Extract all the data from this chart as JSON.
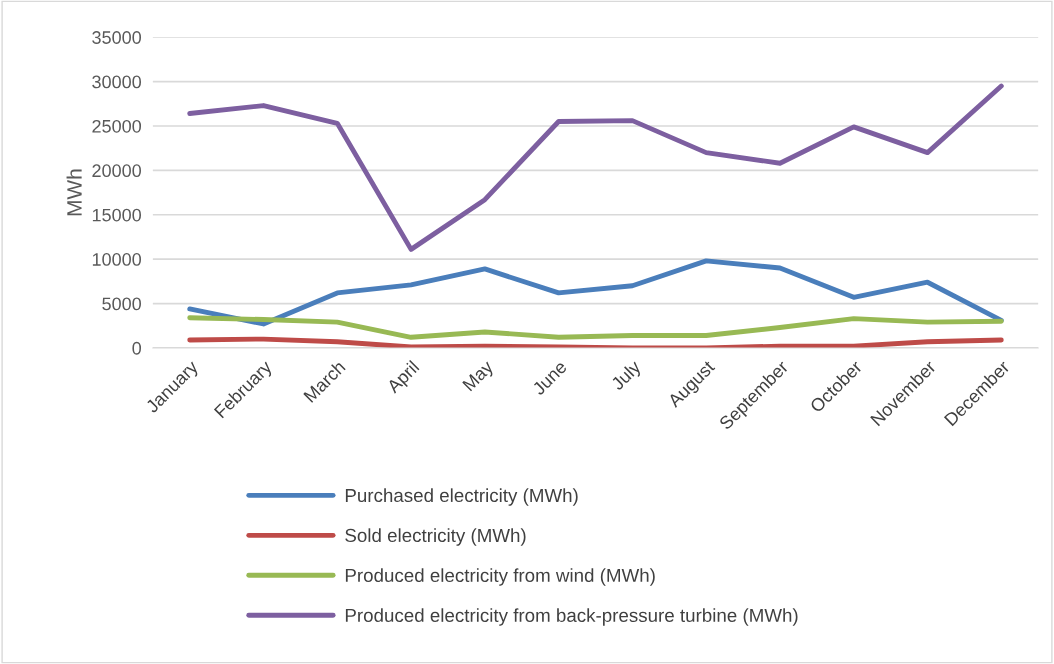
{
  "chart_data": {
    "type": "line",
    "ylabel": "MWh",
    "categories": [
      "January",
      "February",
      "March",
      "April",
      "May",
      "June",
      "July",
      "August",
      "September",
      "October",
      "November",
      "December"
    ],
    "series": [
      {
        "name": "Purchased electricity (MWh)",
        "color": "#4a7ebb",
        "values": [
          4400,
          2700,
          6200,
          7100,
          8900,
          6200,
          7000,
          9800,
          9000,
          5700,
          7400,
          3100
        ]
      },
      {
        "name": "Sold electricity (MWh)",
        "color": "#be4b48",
        "values": [
          900,
          1000,
          700,
          100,
          200,
          100,
          0,
          0,
          200,
          200,
          700,
          900
        ]
      },
      {
        "name": "Produced electricity from wind (MWh)",
        "color": "#98b954",
        "values": [
          3400,
          3200,
          2900,
          1200,
          1800,
          1200,
          1400,
          1400,
          2300,
          3300,
          2900,
          3000
        ]
      },
      {
        "name": "Produced electricity from back-pressure turbine (MWh)",
        "color": "#7d5fa0",
        "values": [
          26400,
          27300,
          25300,
          11100,
          16700,
          25500,
          25600,
          22000,
          20800,
          24900,
          22000,
          29500
        ]
      }
    ],
    "ylim": [
      0,
      35000
    ],
    "yticks": [
      0,
      5000,
      10000,
      15000,
      20000,
      25000,
      30000,
      35000
    ],
    "grid": "y",
    "legend": "bottom",
    "marker": "none",
    "line_style": "solid"
  }
}
